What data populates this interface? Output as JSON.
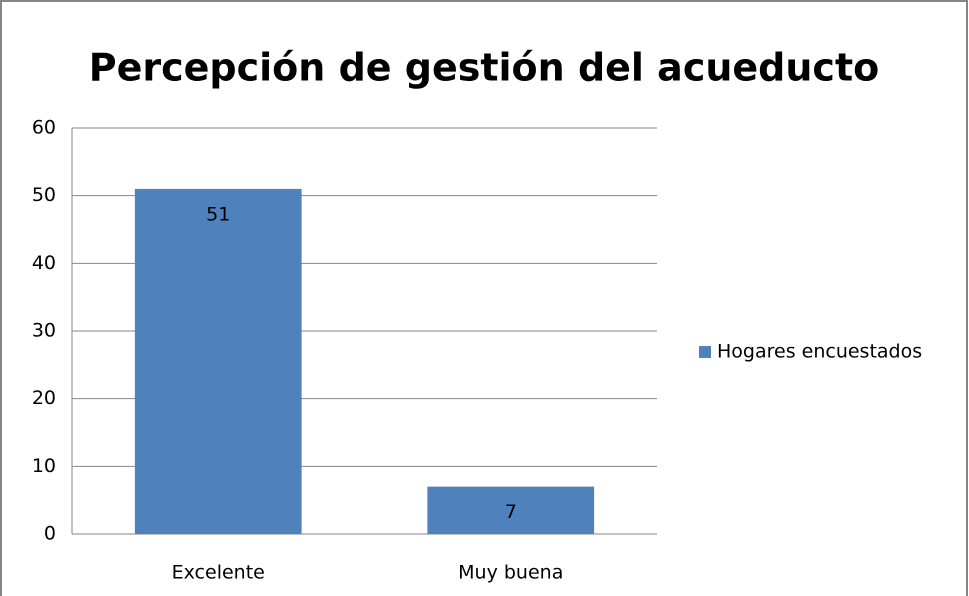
{
  "chart_data": {
    "type": "bar",
    "title": "Percepción de gestión del acueducto",
    "categories": [
      "Excelente",
      "Muy buena"
    ],
    "series": [
      {
        "name": "Hogares encuestados",
        "color": "#4f81bd",
        "values": [
          51,
          7
        ]
      }
    ],
    "ylim": [
      0,
      60
    ],
    "yticks": [
      0,
      10,
      20,
      30,
      40,
      50,
      60
    ],
    "grid": true,
    "data_labels": true,
    "legend": "right"
  }
}
